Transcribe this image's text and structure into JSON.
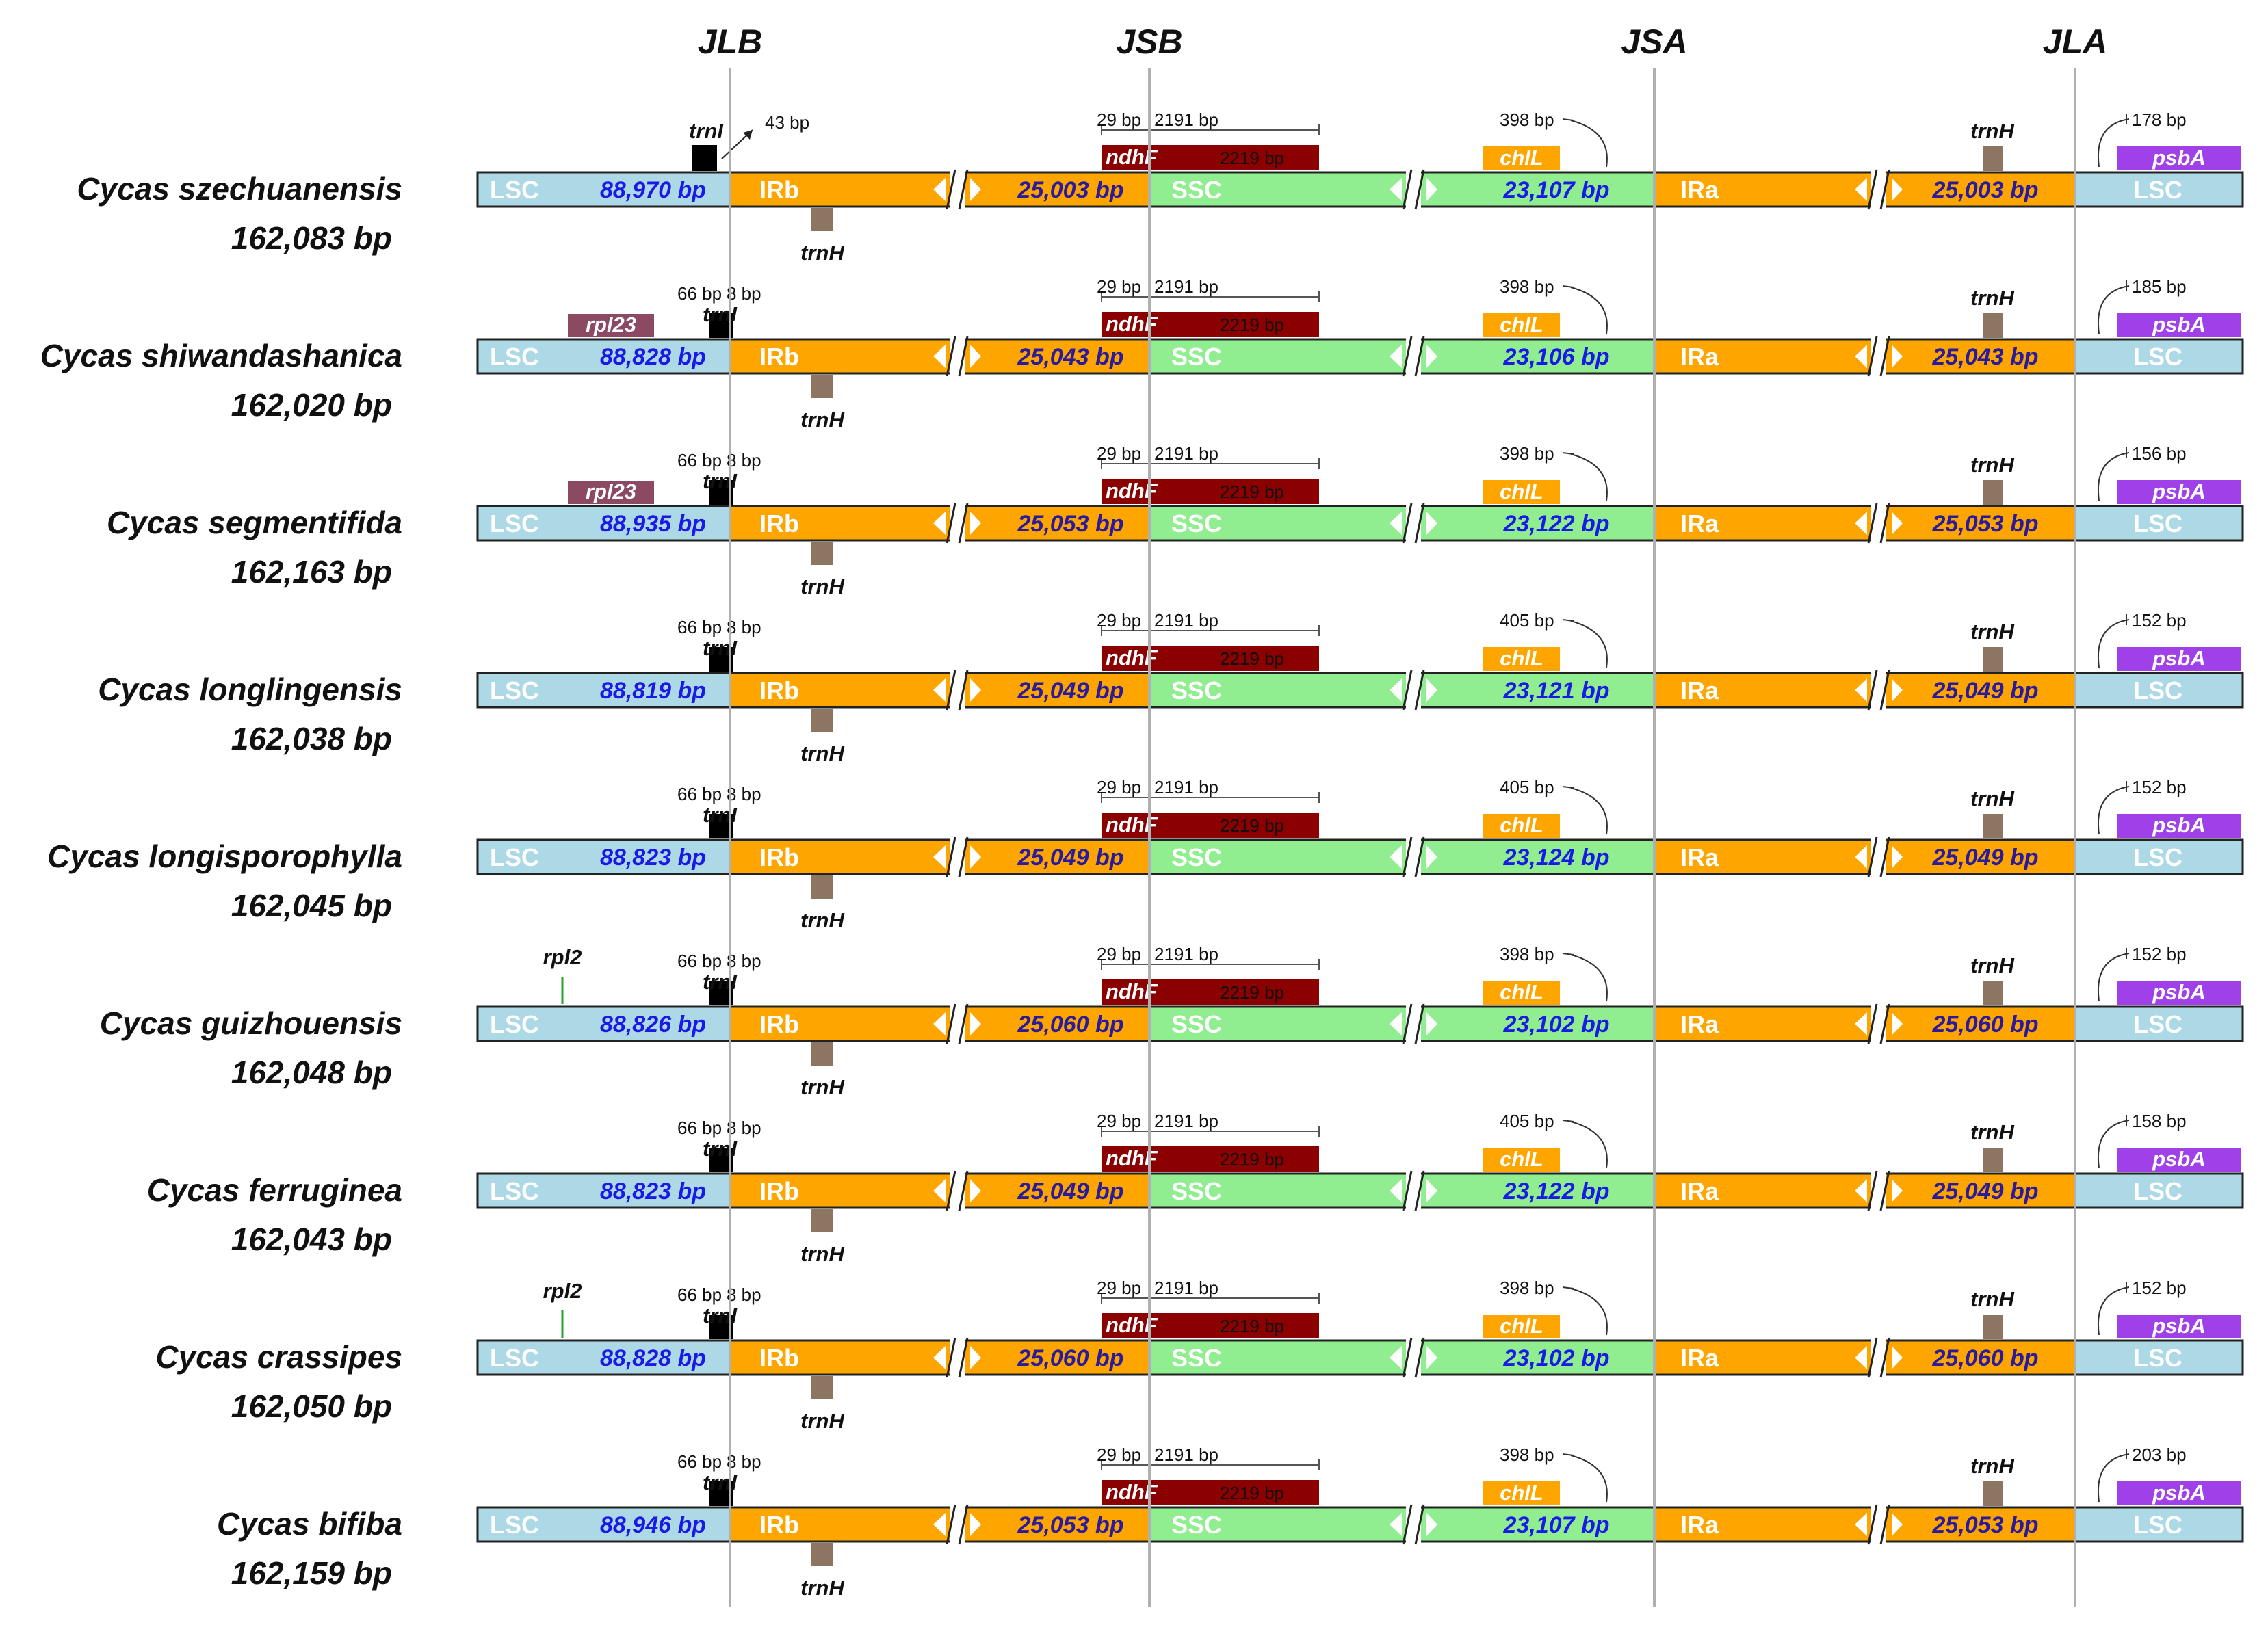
{
  "junctions": [
    "JLB",
    "JSB",
    "JSA",
    "JLA"
  ],
  "colors": {
    "lsc": "#add8e6",
    "ir": "#ffa500",
    "ssc": "#90ee90",
    "ndhF": "#8b0000",
    "chlL": "#ffa500",
    "psbA": "#a040e8",
    "trnH": "#8c7662",
    "trnI": "#000000",
    "rpl23": "#8b4a62",
    "rpl2": "#2aa02a",
    "lsc_length_text": "#1a1ae6",
    "ir_length_text": "#2a1a9c",
    "ssc_length_text": "#1a1ae6",
    "junction_line": "#b0b0b0"
  },
  "region_labels": {
    "lsc": "LSC",
    "irb": "IRb",
    "ssc": "SSC",
    "ira": "IRa"
  },
  "gene_names": {
    "trnI": "trnI",
    "trnH": "trnH",
    "ndhF": "ndhF",
    "chlL": "chlL",
    "psbA": "psbA",
    "rpl23": "rpl23",
    "rpl2": "rpl2"
  },
  "species": [
    {
      "name": "Cycas szechuanensis",
      "size": "162,083 bp",
      "lsc": "88,970 bp",
      "irb": "25,003 bp",
      "ssc": "23,107 bp",
      "ira": "25,003 bp",
      "trnI_note": "43 bp",
      "ndhF_left": "29 bp",
      "ndhF_right": "2191 bp",
      "ndhF_len": "2219 bp",
      "chlL_dist": "398 bp",
      "psbA_dist": "178 bp",
      "has_rpl23": false,
      "has_rpl2": false
    },
    {
      "name": "Cycas shiwandashanica",
      "size": "162,020 bp",
      "lsc": "88,828 bp",
      "irb": "25,043 bp",
      "ssc": "23,106 bp",
      "ira": "25,043 bp",
      "trnI_left": "66 bp",
      "trnI_right": "8 bp",
      "ndhF_left": "29 bp",
      "ndhF_right": "2191 bp",
      "ndhF_len": "2219 bp",
      "chlL_dist": "398 bp",
      "psbA_dist": "185 bp",
      "has_rpl23": true,
      "has_rpl2": false
    },
    {
      "name": "Cycas segmentifida",
      "size": "162,163 bp",
      "lsc": "88,935 bp",
      "irb": "25,053 bp",
      "ssc": "23,122 bp",
      "ira": "25,053 bp",
      "trnI_left": "66 bp",
      "trnI_right": "8 bp",
      "ndhF_left": "29 bp",
      "ndhF_right": "2191 bp",
      "ndhF_len": "2219 bp",
      "chlL_dist": "398 bp",
      "psbA_dist": "156 bp",
      "has_rpl23": true,
      "has_rpl2": false
    },
    {
      "name": "Cycas longlingensis",
      "size": "162,038 bp",
      "lsc": "88,819 bp",
      "irb": "25,049 bp",
      "ssc": "23,121 bp",
      "ira": "25,049 bp",
      "trnI_left": "66 bp",
      "trnI_right": "8 bp",
      "ndhF_left": "29 bp",
      "ndhF_right": "2191 bp",
      "ndhF_len": "2219 bp",
      "chlL_dist": "405 bp",
      "psbA_dist": "152 bp",
      "has_rpl23": false,
      "has_rpl2": false
    },
    {
      "name": "Cycas longisporophylla",
      "size": "162,045 bp",
      "lsc": "88,823 bp",
      "irb": "25,049 bp",
      "ssc": "23,124 bp",
      "ira": "25,049 bp",
      "trnI_left": "66 bp",
      "trnI_right": "8 bp",
      "ndhF_left": "29 bp",
      "ndhF_right": "2191 bp",
      "ndhF_len": "2219 bp",
      "chlL_dist": "405 bp",
      "psbA_dist": "152 bp",
      "has_rpl23": false,
      "has_rpl2": false
    },
    {
      "name": "Cycas guizhouensis",
      "size": "162,048 bp",
      "lsc": "88,826 bp",
      "irb": "25,060 bp",
      "ssc": "23,102 bp",
      "ira": "25,060 bp",
      "trnI_left": "66 bp",
      "trnI_right": "8 bp",
      "ndhF_left": "29 bp",
      "ndhF_right": "2191 bp",
      "ndhF_len": "2219 bp",
      "chlL_dist": "398 bp",
      "psbA_dist": "152 bp",
      "has_rpl23": false,
      "has_rpl2": true
    },
    {
      "name": "Cycas ferruginea",
      "size": "162,043 bp",
      "lsc": "88,823 bp",
      "irb": "25,049 bp",
      "ssc": "23,122 bp",
      "ira": "25,049 bp",
      "trnI_left": "66 bp",
      "trnI_right": "8 bp",
      "ndhF_left": "29 bp",
      "ndhF_right": "2191 bp",
      "ndhF_len": "2219 bp",
      "chlL_dist": "405 bp",
      "psbA_dist": "158 bp",
      "has_rpl23": false,
      "has_rpl2": false
    },
    {
      "name": "Cycas crassipes",
      "size": "162,050 bp",
      "lsc": "88,828 bp",
      "irb": "25,060 bp",
      "ssc": "23,102 bp",
      "ira": "25,060 bp",
      "trnI_left": "66 bp",
      "trnI_right": "8 bp",
      "ndhF_left": "29 bp",
      "ndhF_right": "2191 bp",
      "ndhF_len": "2219 bp",
      "chlL_dist": "398 bp",
      "psbA_dist": "152 bp",
      "has_rpl23": false,
      "has_rpl2": true
    },
    {
      "name": "Cycas bifiba",
      "size": "162,159 bp",
      "lsc": "88,946 bp",
      "irb": "25,053 bp",
      "ssc": "23,107 bp",
      "ira": "25,053 bp",
      "trnI_left": "66 bp",
      "trnI_right": "8 bp",
      "ndhF_left": "29 bp",
      "ndhF_right": "2191 bp",
      "ndhF_len": "2219 bp",
      "chlL_dist": "398 bp",
      "psbA_dist": "203 bp",
      "has_rpl23": false,
      "has_rpl2": false
    }
  ]
}
